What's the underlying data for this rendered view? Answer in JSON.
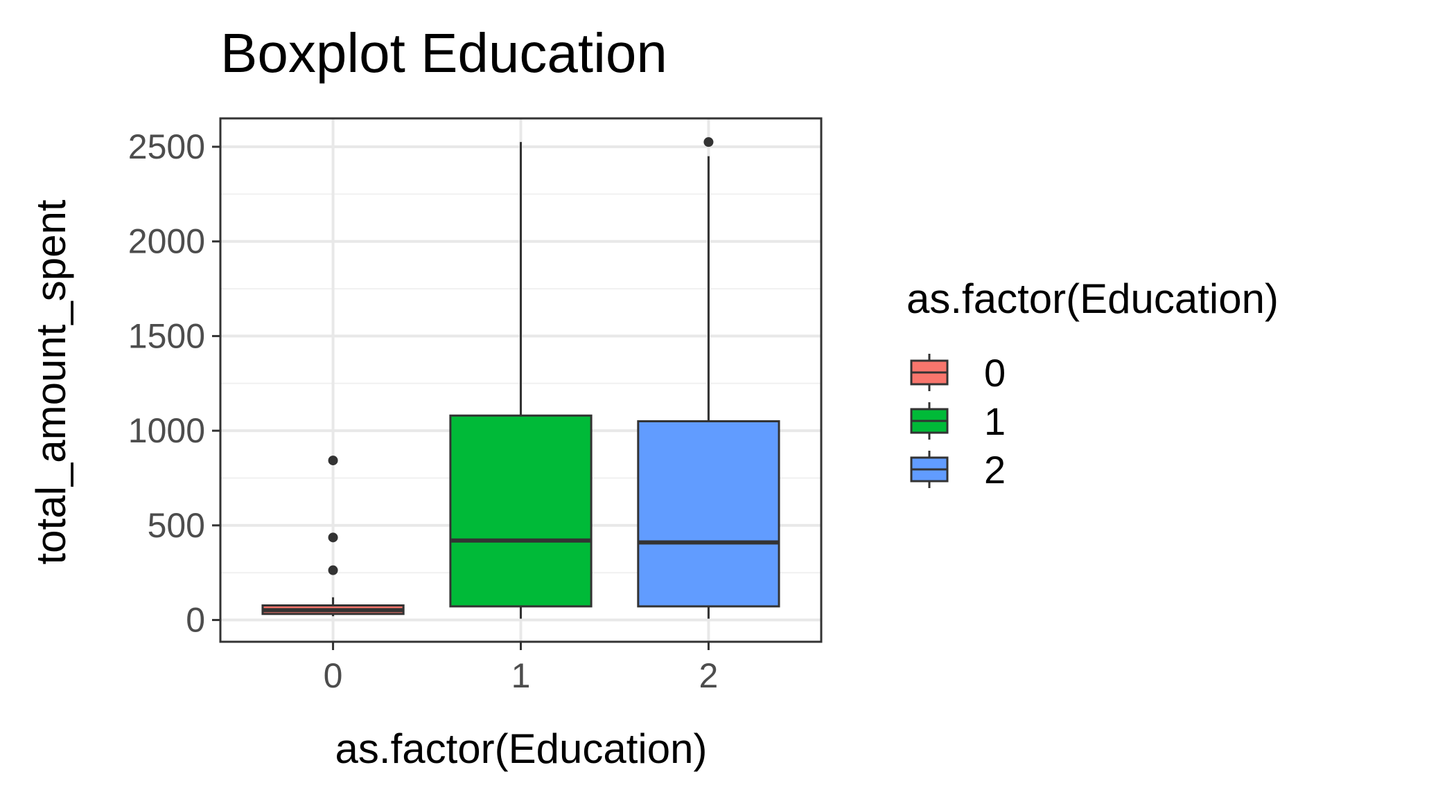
{
  "chart_data": {
    "type": "boxplot",
    "title": "Boxplot Education",
    "xlabel": "as.factor(Education)",
    "ylabel": "total_amount_spent",
    "ylim": [
      -115,
      2650
    ],
    "yticks": [
      0,
      500,
      1000,
      1500,
      2000,
      2500
    ],
    "ytick_labels": [
      "0",
      "500",
      "1000",
      "1500",
      "2000",
      "2500"
    ],
    "categories": [
      "0",
      "1",
      "2"
    ],
    "grid": true,
    "legend": {
      "title": "as.factor(Education)",
      "position": "right",
      "entries": [
        "0",
        "1",
        "2"
      ]
    },
    "colors": [
      "#F8766D",
      "#00BA38",
      "#619CFF"
    ],
    "boxes": [
      {
        "category": "0",
        "min": 20,
        "q1": 32,
        "median": 52,
        "q3": 77,
        "max": 120,
        "outliers": [
          263,
          436,
          843
        ]
      },
      {
        "category": "1",
        "min": 7,
        "q1": 72,
        "median": 420,
        "q3": 1080,
        "max": 2525,
        "outliers": []
      },
      {
        "category": "2",
        "min": 7,
        "q1": 72,
        "median": 410,
        "q3": 1050,
        "max": 2450,
        "outliers": [
          2525
        ]
      }
    ]
  }
}
